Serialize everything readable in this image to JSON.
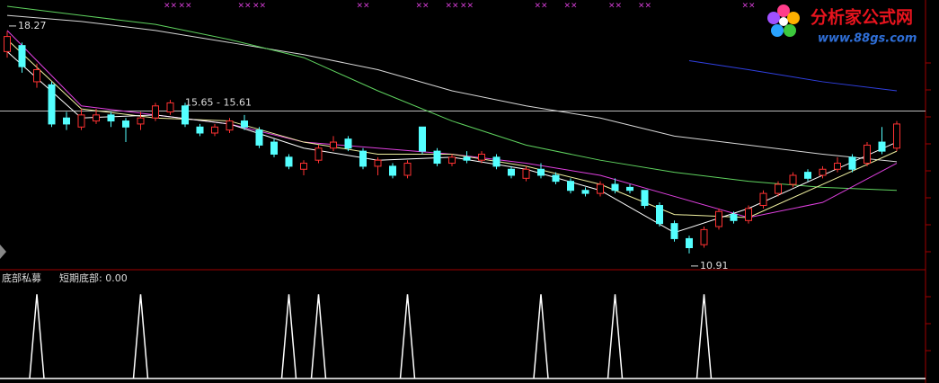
{
  "chart_data": {
    "type": "candlestick",
    "ylim": [
      10.37,
      19.31
    ],
    "candles": [
      [
        17.6,
        18.1,
        18.27,
        17.4
      ],
      [
        17.8,
        17.1,
        17.9,
        16.9
      ],
      [
        16.6,
        17.0,
        17.2,
        16.4
      ],
      [
        16.5,
        15.2,
        16.6,
        15.1
      ],
      [
        15.4,
        15.2,
        15.6,
        15.0
      ],
      [
        15.1,
        15.5,
        15.7,
        15.0
      ],
      [
        15.3,
        15.5,
        15.7,
        15.2
      ],
      [
        15.5,
        15.3,
        15.6,
        15.1
      ],
      [
        15.3,
        15.1,
        15.4,
        14.6
      ],
      [
        15.2,
        15.4,
        15.6,
        15.0
      ],
      [
        15.4,
        15.8,
        15.9,
        15.3
      ],
      [
        15.6,
        15.9,
        16.0,
        15.5
      ],
      [
        15.8,
        15.2,
        15.9,
        15.1
      ],
      [
        15.1,
        14.9,
        15.2,
        14.8
      ],
      [
        14.9,
        15.1,
        15.2,
        14.8
      ],
      [
        15.0,
        15.3,
        15.4,
        14.9
      ],
      [
        15.3,
        15.1,
        15.5,
        15.0
      ],
      [
        15.0,
        14.5,
        15.1,
        14.4
      ],
      [
        14.6,
        14.2,
        14.7,
        14.1
      ],
      [
        14.1,
        13.8,
        14.2,
        13.7
      ],
      [
        13.7,
        13.9,
        14.0,
        13.5
      ],
      [
        14.0,
        14.4,
        14.5,
        13.9
      ],
      [
        14.4,
        14.6,
        14.8,
        14.3
      ],
      [
        14.7,
        14.4,
        14.8,
        14.3
      ],
      [
        14.3,
        13.8,
        14.4,
        13.7
      ],
      [
        13.8,
        14.0,
        14.1,
        13.5
      ],
      [
        13.8,
        13.5,
        13.9,
        13.4
      ],
      [
        13.5,
        13.9,
        14.0,
        13.4
      ],
      [
        15.1,
        14.3,
        15.1,
        14.2
      ],
      [
        14.3,
        13.9,
        14.4,
        13.8
      ],
      [
        13.9,
        14.1,
        14.2,
        13.8
      ],
      [
        14.1,
        14.0,
        14.3,
        13.9
      ],
      [
        14.0,
        14.2,
        14.3,
        13.9
      ],
      [
        14.1,
        13.8,
        14.2,
        13.7
      ],
      [
        13.7,
        13.5,
        13.8,
        13.4
      ],
      [
        13.4,
        13.7,
        13.8,
        13.3
      ],
      [
        13.7,
        13.5,
        13.9,
        13.4
      ],
      [
        13.5,
        13.3,
        13.6,
        13.2
      ],
      [
        13.3,
        13.0,
        13.4,
        12.9
      ],
      [
        13.0,
        12.9,
        13.1,
        12.8
      ],
      [
        12.9,
        13.2,
        13.3,
        12.8
      ],
      [
        13.2,
        13.0,
        13.4,
        12.9
      ],
      [
        13.1,
        13.0,
        13.2,
        12.9
      ],
      [
        13.0,
        12.5,
        13.0,
        12.4
      ],
      [
        12.5,
        11.9,
        12.6,
        11.8
      ],
      [
        11.9,
        11.4,
        12.0,
        11.3
      ],
      [
        11.4,
        11.1,
        11.5,
        10.91
      ],
      [
        11.2,
        11.7,
        11.8,
        11.1
      ],
      [
        11.8,
        12.3,
        12.4,
        11.7
      ],
      [
        12.2,
        12.0,
        12.3,
        11.9
      ],
      [
        12.0,
        12.4,
        12.5,
        11.9
      ],
      [
        12.5,
        12.9,
        13.0,
        12.4
      ],
      [
        12.9,
        13.2,
        13.3,
        12.8
      ],
      [
        13.2,
        13.5,
        13.6,
        13.1
      ],
      [
        13.6,
        13.4,
        13.7,
        13.3
      ],
      [
        13.5,
        13.7,
        13.8,
        13.4
      ],
      [
        13.7,
        13.9,
        14.1,
        13.6
      ],
      [
        14.1,
        13.7,
        14.2,
        13.6
      ],
      [
        13.9,
        14.5,
        14.6,
        13.8
      ],
      [
        14.6,
        14.3,
        15.1,
        14.2
      ],
      [
        14.4,
        15.2,
        15.3,
        14.3
      ]
    ],
    "up_color": "#ff3232",
    "down_color": "#54ffff",
    "series": [
      {
        "color": "#d8d8d8",
        "x": [
          0,
          5,
          10,
          15,
          20,
          25,
          30,
          35,
          40,
          45,
          50,
          55,
          60
        ],
        "values": [
          18.8,
          18.6,
          18.3,
          17.9,
          17.5,
          17.0,
          16.3,
          15.8,
          15.4,
          14.8,
          14.5,
          14.2,
          13.95
        ]
      },
      {
        "color": "#5fd35f",
        "x": [
          0,
          5,
          10,
          15,
          20,
          25,
          30,
          35,
          40,
          45,
          50,
          55,
          60
        ],
        "values": [
          19.1,
          18.8,
          18.5,
          18.0,
          17.4,
          16.3,
          15.3,
          14.5,
          14.0,
          13.6,
          13.3,
          13.1,
          13.0
        ]
      },
      {
        "color": "#e040e0",
        "x": [
          0,
          5,
          10,
          15,
          20,
          25,
          30,
          35,
          40,
          45,
          50,
          55,
          60
        ],
        "values": [
          18.3,
          15.8,
          15.5,
          15.2,
          14.6,
          14.4,
          14.2,
          13.9,
          13.5,
          12.8,
          12.1,
          12.6,
          13.9
        ]
      },
      {
        "color": "#f0f0a0",
        "x": [
          0,
          5,
          10,
          15,
          20,
          25,
          30,
          35,
          40,
          45,
          50,
          55,
          60
        ],
        "values": [
          18.0,
          15.7,
          15.4,
          15.3,
          14.6,
          14.2,
          14.2,
          13.8,
          13.2,
          12.2,
          12.1,
          13.2,
          14.3
        ]
      },
      {
        "color": "#ffffff",
        "x": [
          0,
          5,
          10,
          15,
          20,
          25,
          30,
          35,
          40,
          45,
          50,
          55,
          60
        ],
        "values": [
          17.6,
          15.4,
          15.5,
          15.2,
          14.4,
          14.0,
          14.1,
          13.7,
          13.0,
          11.6,
          12.4,
          13.5,
          14.6
        ]
      },
      {
        "color": "#3040e0",
        "x": [
          46,
          50,
          55,
          60
        ],
        "values": [
          17.3,
          17.0,
          16.6,
          16.3
        ]
      }
    ],
    "high_mark": {
      "x": 0,
      "value": 18.27
    },
    "low_mark": {
      "x": 46,
      "value": 10.91
    },
    "range_line": {
      "values": [
        15.65,
        15.61
      ],
      "label": "15.65 - 15.61"
    },
    "top_marks": {
      "label": "××",
      "x": [
        11,
        12,
        16,
        17,
        24,
        28,
        30,
        31,
        36,
        38,
        41,
        43,
        50
      ]
    },
    "indicator": {
      "title": "底部私募",
      "label": "短期底部: 0.00",
      "ylim": [
        0,
        1.1
      ],
      "x": [
        2,
        9,
        19,
        21,
        27,
        36,
        41,
        47
      ],
      "values": [
        1,
        1,
        1,
        1,
        1,
        1,
        1,
        1
      ]
    }
  },
  "logo": {
    "name": "分析家公式网",
    "url": "www.88gs.com"
  }
}
